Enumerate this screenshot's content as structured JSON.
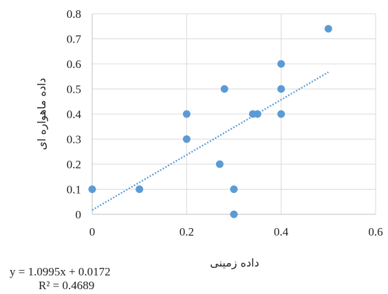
{
  "chart_data": {
    "type": "scatter",
    "xlabel": "داده زمینی",
    "ylabel": "داده ماهواره ای",
    "xlim": [
      0,
      0.6
    ],
    "ylim": [
      0,
      0.8
    ],
    "x_ticks": [
      "0",
      "0.2",
      "0.4",
      "0.6"
    ],
    "y_ticks": [
      "0",
      "0.1",
      "0.2",
      "0.3",
      "0.4",
      "0.5",
      "0.6",
      "0.7",
      "0.8"
    ],
    "x_tick_values": [
      0,
      0.2,
      0.4,
      0.6
    ],
    "y_tick_values": [
      0,
      0.1,
      0.2,
      0.3,
      0.4,
      0.5,
      0.6,
      0.7,
      0.8
    ],
    "grid": true,
    "series": [
      {
        "color": "#5b9bd5",
        "points": [
          {
            "x": 0,
            "y": 0.1
          },
          {
            "x": 0.1,
            "y": 0.1
          },
          {
            "x": 0.2,
            "y": 0.3
          },
          {
            "x": 0.2,
            "y": 0.4
          },
          {
            "x": 0.27,
            "y": 0.2
          },
          {
            "x": 0.28,
            "y": 0.5
          },
          {
            "x": 0.3,
            "y": 0.1
          },
          {
            "x": 0.3,
            "y": 0.0
          },
          {
            "x": 0.34,
            "y": 0.4
          },
          {
            "x": 0.35,
            "y": 0.4
          },
          {
            "x": 0.4,
            "y": 0.6
          },
          {
            "x": 0.4,
            "y": 0.5
          },
          {
            "x": 0.4,
            "y": 0.4
          },
          {
            "x": 0.5,
            "y": 0.74
          }
        ]
      }
    ],
    "trendline": {
      "type": "linear",
      "slope": 1.0995,
      "intercept": 0.0172,
      "x_range": [
        0,
        0.5
      ],
      "style": "dotted",
      "color": "#5b9bd5",
      "equation": "y = 1.0995x + 0.0172",
      "r_squared": "R² = 0.4689"
    }
  }
}
